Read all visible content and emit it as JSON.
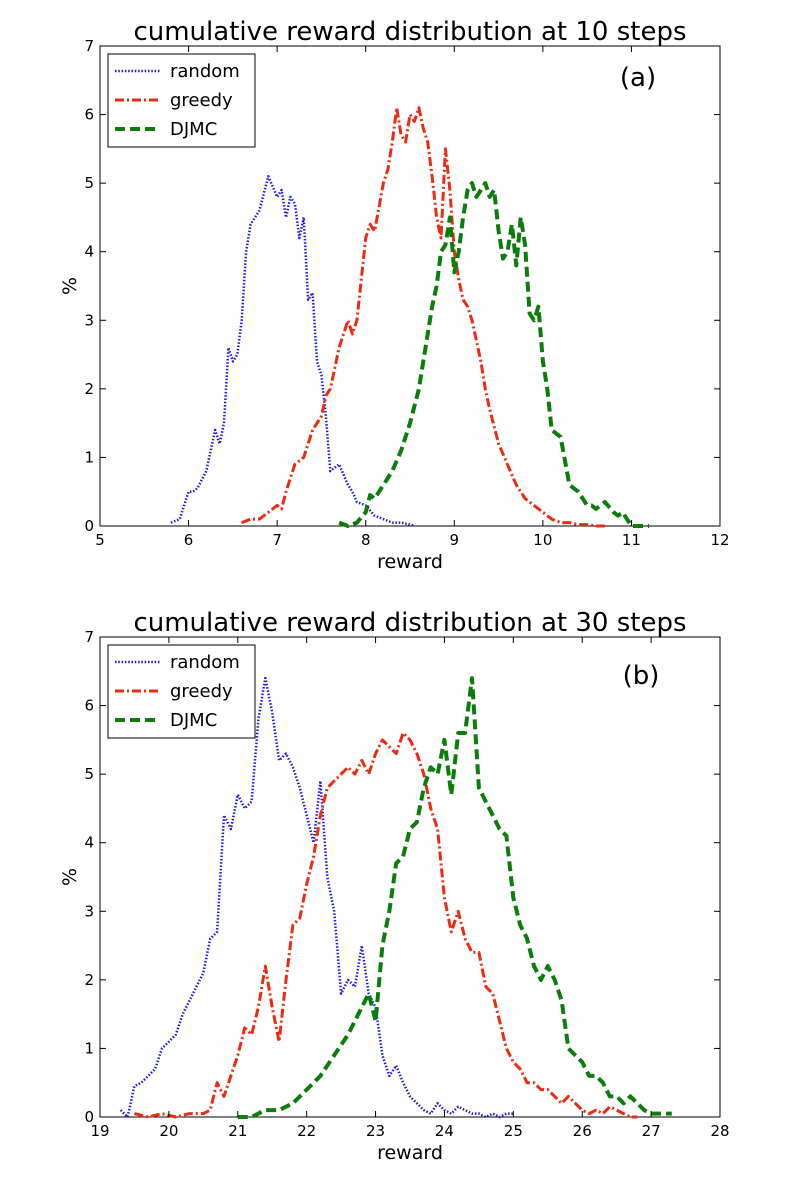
{
  "colors": {
    "random": "#1a1adc",
    "greedy": "#ee2a12",
    "djmc": "#0b7d0b",
    "tag": "#2a1a6e"
  },
  "chart_data": [
    {
      "type": "line",
      "title": "cumulative reward distribution at 10 steps",
      "xlabel": "reward",
      "ylabel": "%",
      "panel_label": "(a)",
      "xlim": [
        5,
        12
      ],
      "ylim": [
        0,
        7
      ],
      "xticks": [
        "5",
        "6",
        "7",
        "8",
        "9",
        "10",
        "11",
        "12"
      ],
      "yticks": [
        "0",
        "1",
        "2",
        "3",
        "4",
        "5",
        "6",
        "7"
      ],
      "legend": {
        "placement": "top-left",
        "entries": [
          "random",
          "greedy",
          "DJMC"
        ]
      },
      "series": [
        {
          "name": "random",
          "color_key": "random",
          "style": "dotted",
          "x": [
            5.8,
            5.9,
            6.0,
            6.05,
            6.1,
            6.2,
            6.3,
            6.35,
            6.4,
            6.45,
            6.5,
            6.55,
            6.6,
            6.65,
            6.7,
            6.75,
            6.8,
            6.9,
            7.0,
            7.05,
            7.1,
            7.15,
            7.2,
            7.25,
            7.3,
            7.35,
            7.4,
            7.45,
            7.5,
            7.55,
            7.6,
            7.7,
            7.8,
            7.85,
            7.9,
            8.0,
            8.1,
            8.2,
            8.3,
            8.4,
            8.5,
            8.55
          ],
          "y": [
            0.05,
            0.1,
            0.5,
            0.5,
            0.55,
            0.8,
            1.4,
            1.2,
            1.5,
            2.6,
            2.4,
            2.5,
            3.0,
            4.0,
            4.4,
            4.5,
            4.6,
            5.1,
            4.8,
            4.9,
            4.5,
            4.8,
            4.7,
            4.2,
            4.5,
            3.3,
            3.4,
            2.4,
            2.2,
            1.6,
            0.8,
            0.9,
            0.6,
            0.5,
            0.35,
            0.3,
            0.15,
            0.1,
            0.05,
            0.05,
            0.02,
            0.0
          ]
        },
        {
          "name": "greedy",
          "color_key": "greedy",
          "style": "dashdot",
          "x": [
            6.6,
            6.7,
            6.8,
            6.9,
            7.0,
            7.05,
            7.1,
            7.2,
            7.3,
            7.4,
            7.5,
            7.55,
            7.6,
            7.7,
            7.8,
            7.85,
            7.9,
            8.0,
            8.05,
            8.1,
            8.2,
            8.25,
            8.3,
            8.35,
            8.4,
            8.45,
            8.5,
            8.55,
            8.6,
            8.65,
            8.7,
            8.75,
            8.8,
            8.85,
            8.9,
            8.95,
            9.0,
            9.05,
            9.1,
            9.15,
            9.2,
            9.3,
            9.35,
            9.4,
            9.5,
            9.6,
            9.7,
            9.8,
            9.9,
            10.0,
            10.1,
            10.2,
            10.3,
            10.4,
            10.5,
            10.6,
            10.7
          ],
          "y": [
            0.05,
            0.1,
            0.1,
            0.2,
            0.3,
            0.25,
            0.5,
            0.9,
            1.0,
            1.4,
            1.6,
            1.9,
            2.0,
            2.6,
            3.0,
            2.8,
            3.0,
            4.2,
            4.4,
            4.3,
            5.0,
            5.2,
            5.6,
            6.1,
            5.7,
            5.6,
            6.0,
            5.9,
            6.1,
            5.8,
            5.6,
            5.1,
            4.5,
            4.2,
            5.5,
            4.9,
            4.0,
            3.6,
            3.3,
            3.2,
            3.0,
            2.4,
            2.0,
            1.7,
            1.2,
            0.9,
            0.6,
            0.4,
            0.3,
            0.2,
            0.1,
            0.05,
            0.05,
            0.02,
            0.02,
            0.0,
            0.0
          ]
        },
        {
          "name": "DJMC",
          "color_key": "djmc",
          "style": "dashed",
          "x": [
            7.7,
            7.8,
            7.9,
            8.0,
            8.05,
            8.1,
            8.2,
            8.3,
            8.4,
            8.5,
            8.6,
            8.7,
            8.75,
            8.8,
            8.85,
            8.9,
            8.95,
            9.0,
            9.05,
            9.1,
            9.15,
            9.2,
            9.25,
            9.3,
            9.35,
            9.4,
            9.45,
            9.5,
            9.55,
            9.6,
            9.65,
            9.7,
            9.75,
            9.8,
            9.85,
            9.9,
            9.95,
            10.0,
            10.05,
            10.1,
            10.2,
            10.3,
            10.4,
            10.5,
            10.55,
            10.6,
            10.7,
            10.8,
            10.85,
            10.9,
            11.0,
            11.1,
            11.2
          ],
          "y": [
            0.05,
            0.0,
            0.05,
            0.2,
            0.45,
            0.4,
            0.6,
            0.8,
            1.1,
            1.5,
            2.0,
            2.8,
            3.2,
            3.5,
            4.0,
            4.1,
            4.5,
            3.7,
            4.0,
            4.5,
            4.9,
            5.0,
            4.8,
            4.9,
            5.0,
            4.8,
            4.9,
            4.3,
            3.9,
            4.0,
            4.4,
            3.8,
            4.5,
            4.1,
            3.1,
            3.0,
            3.2,
            2.4,
            2.0,
            1.4,
            1.3,
            0.6,
            0.5,
            0.3,
            0.3,
            0.25,
            0.35,
            0.2,
            0.15,
            0.2,
            0.0,
            0.0,
            0.0
          ]
        }
      ]
    },
    {
      "type": "line",
      "title": "cumulative reward distribution at 30 steps",
      "xlabel": "reward",
      "ylabel": "%",
      "panel_label": "(b)",
      "xlim": [
        19,
        28
      ],
      "ylim": [
        0,
        7
      ],
      "xticks": [
        "19",
        "20",
        "21",
        "22",
        "23",
        "24",
        "25",
        "26",
        "27",
        "28"
      ],
      "yticks": [
        "0",
        "1",
        "2",
        "3",
        "4",
        "5",
        "6",
        "7"
      ],
      "legend": {
        "placement": "top-left",
        "entries": [
          "random",
          "greedy",
          "DJMC"
        ]
      },
      "series": [
        {
          "name": "random",
          "color_key": "random",
          "style": "dotted",
          "x": [
            19.3,
            19.4,
            19.5,
            19.6,
            19.7,
            19.8,
            19.9,
            20.0,
            20.1,
            20.2,
            20.3,
            20.4,
            20.5,
            20.6,
            20.7,
            20.8,
            20.9,
            21.0,
            21.1,
            21.2,
            21.3,
            21.4,
            21.5,
            21.6,
            21.7,
            21.8,
            21.9,
            22.0,
            22.1,
            22.2,
            22.3,
            22.4,
            22.5,
            22.6,
            22.7,
            22.8,
            22.9,
            23.0,
            23.1,
            23.2,
            23.3,
            23.4,
            23.5,
            23.6,
            23.7,
            23.8,
            23.9,
            24.0,
            24.1,
            24.2,
            24.3,
            24.4,
            24.5,
            24.6,
            24.7,
            24.8,
            24.9,
            25.0
          ],
          "y": [
            0.1,
            0.0,
            0.45,
            0.5,
            0.6,
            0.7,
            1.0,
            1.1,
            1.2,
            1.5,
            1.7,
            1.9,
            2.1,
            2.6,
            2.7,
            4.4,
            4.2,
            4.7,
            4.5,
            4.6,
            5.8,
            6.4,
            5.9,
            5.2,
            5.3,
            5.1,
            4.8,
            4.4,
            4.0,
            4.9,
            3.5,
            3.0,
            1.8,
            2.0,
            1.9,
            2.5,
            1.8,
            1.6,
            0.9,
            0.6,
            0.75,
            0.5,
            0.3,
            0.2,
            0.1,
            0.05,
            0.2,
            0.1,
            0.05,
            0.15,
            0.1,
            0.05,
            0.05,
            0.0,
            0.05,
            0.0,
            0.05,
            0.05
          ]
        },
        {
          "name": "greedy",
          "color_key": "greedy",
          "style": "dashdot",
          "x": [
            19.5,
            19.7,
            19.9,
            20.1,
            20.3,
            20.5,
            20.6,
            20.7,
            20.8,
            20.9,
            21.0,
            21.1,
            21.2,
            21.3,
            21.4,
            21.5,
            21.6,
            21.7,
            21.8,
            21.9,
            22.0,
            22.1,
            22.2,
            22.3,
            22.4,
            22.5,
            22.6,
            22.7,
            22.8,
            22.9,
            23.0,
            23.1,
            23.2,
            23.3,
            23.4,
            23.5,
            23.6,
            23.7,
            23.8,
            23.9,
            24.0,
            24.1,
            24.2,
            24.3,
            24.4,
            24.5,
            24.6,
            24.7,
            24.8,
            24.9,
            25.0,
            25.1,
            25.2,
            25.3,
            25.4,
            25.5,
            25.6,
            25.7,
            25.8,
            25.9,
            26.0,
            26.1,
            26.2,
            26.3,
            26.4,
            26.5,
            26.6,
            26.7,
            26.8
          ],
          "y": [
            0.05,
            0.0,
            0.05,
            0.0,
            0.05,
            0.05,
            0.1,
            0.5,
            0.3,
            0.6,
            0.9,
            1.3,
            1.2,
            1.6,
            2.2,
            1.6,
            1.1,
            2.0,
            2.8,
            2.9,
            3.4,
            3.8,
            4.4,
            4.8,
            4.9,
            5.0,
            5.1,
            5.0,
            5.2,
            5.0,
            5.3,
            5.5,
            5.4,
            5.3,
            5.6,
            5.5,
            5.3,
            5.0,
            4.5,
            4.2,
            3.2,
            2.7,
            3.0,
            2.6,
            2.4,
            2.4,
            1.9,
            1.8,
            1.4,
            1.0,
            0.8,
            0.7,
            0.5,
            0.5,
            0.4,
            0.4,
            0.3,
            0.2,
            0.3,
            0.2,
            0.1,
            0.05,
            0.1,
            0.05,
            0.15,
            0.1,
            0.05,
            0.0,
            0.0
          ]
        },
        {
          "name": "DJMC",
          "color_key": "djmc",
          "style": "dashed",
          "x": [
            21.0,
            21.2,
            21.4,
            21.6,
            21.8,
            22.0,
            22.2,
            22.4,
            22.6,
            22.8,
            22.9,
            23.0,
            23.1,
            23.2,
            23.3,
            23.4,
            23.5,
            23.6,
            23.7,
            23.8,
            23.9,
            24.0,
            24.1,
            24.2,
            24.3,
            24.4,
            24.5,
            24.6,
            24.7,
            24.8,
            24.9,
            25.0,
            25.1,
            25.2,
            25.3,
            25.4,
            25.5,
            25.6,
            25.7,
            25.8,
            25.9,
            26.0,
            26.1,
            26.2,
            26.3,
            26.4,
            26.5,
            26.6,
            26.7,
            26.8,
            26.9,
            27.0,
            27.1,
            27.2,
            27.3
          ],
          "y": [
            0.0,
            0.0,
            0.1,
            0.1,
            0.2,
            0.4,
            0.6,
            0.9,
            1.2,
            1.6,
            1.8,
            1.4,
            2.5,
            3.0,
            3.7,
            3.8,
            4.2,
            4.3,
            4.8,
            5.1,
            5.0,
            5.5,
            4.7,
            5.6,
            5.6,
            6.4,
            4.8,
            4.6,
            4.4,
            4.2,
            4.1,
            3.2,
            2.8,
            2.6,
            2.2,
            2.0,
            2.2,
            2.0,
            1.7,
            1.0,
            0.9,
            0.8,
            0.6,
            0.6,
            0.5,
            0.3,
            0.3,
            0.2,
            0.3,
            0.2,
            0.1,
            0.05,
            0.05,
            0.05,
            0.05
          ]
        }
      ]
    }
  ]
}
